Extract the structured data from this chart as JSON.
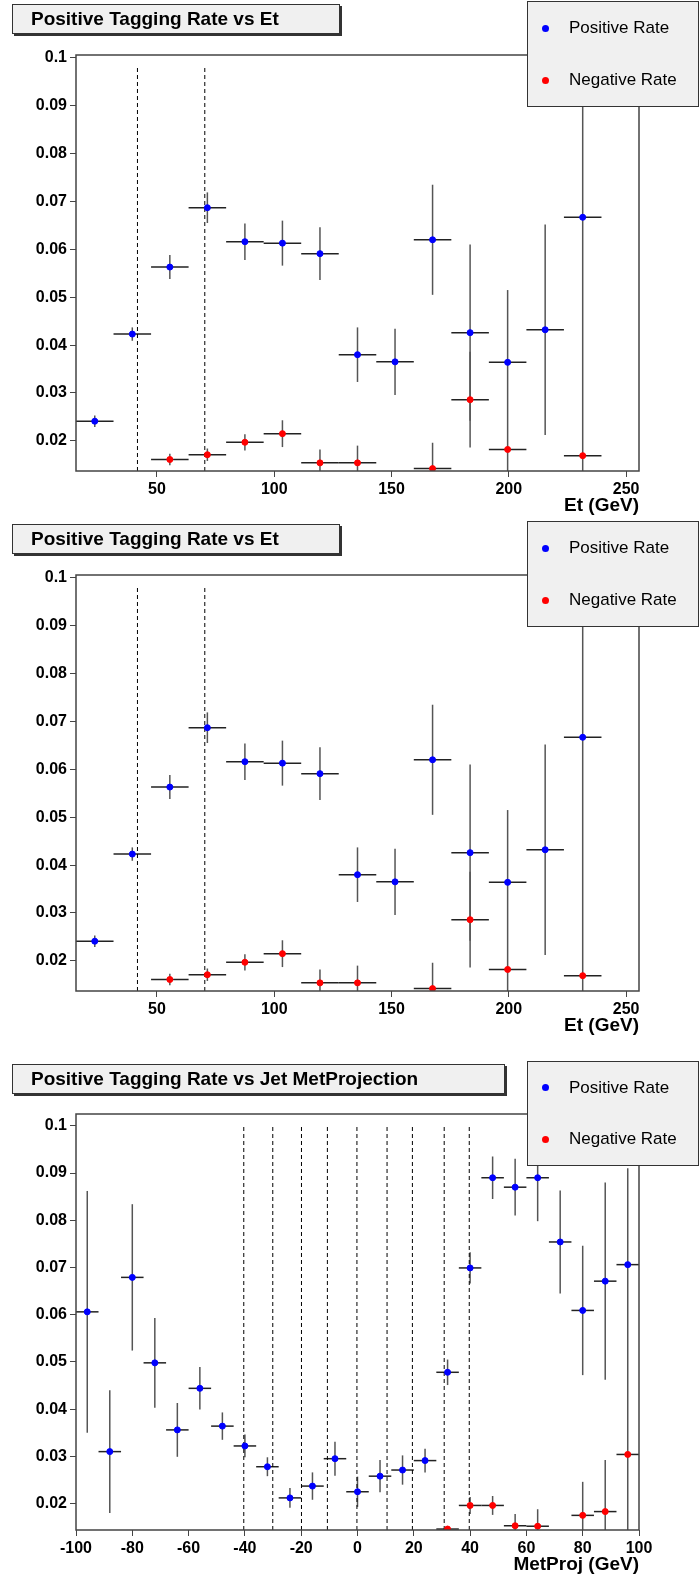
{
  "chart_data": [
    {
      "type": "scatter",
      "title": "Positive Tagging Rate vs Et",
      "xlabel": "Et (GeV)",
      "xlim": [
        15.5,
        255.5
      ],
      "xticks": [
        50,
        100,
        150,
        200,
        250
      ],
      "ylim": [
        0.0137,
        0.1006
      ],
      "yticks": [
        0.02,
        0.03,
        0.04,
        0.05,
        0.06,
        0.07,
        0.08,
        0.09,
        0.1
      ],
      "legend": "top right",
      "marker": "circle",
      "ref_lines": [
        {
          "axis": "x",
          "value": 41.7,
          "line_style": "dashed",
          "color": "#000000"
        },
        {
          "axis": "x",
          "value": 70.4,
          "line_style": "dashed",
          "color": "#000000"
        }
      ],
      "series": [
        {
          "name": "Positive Rate",
          "color": "#0000ff",
          "x": [
            23.5,
            39.5,
            55.5,
            71.5,
            87.5,
            103.5,
            119.5,
            135.5,
            151.5,
            167.5,
            183.5,
            199.5,
            215.5,
            231.5
          ],
          "values": [
            0.0241,
            0.0423,
            0.0563,
            0.0687,
            0.0616,
            0.0613,
            0.0591,
            0.038,
            0.0365,
            0.062,
            0.0426,
            0.0364,
            0.0432,
            0.0667
          ],
          "errors": [
            0.0012,
            0.0014,
            0.0025,
            0.0032,
            0.0038,
            0.0047,
            0.0055,
            0.0057,
            0.0069,
            0.0115,
            0.0184,
            [
              0.0137,
              0.0515
            ],
            0.022,
            [
              0.0137,
              0.09
            ]
          ],
          "xerrors": [
            8,
            8,
            8,
            8,
            8,
            8,
            8,
            8,
            8,
            8,
            8,
            8,
            8,
            8
          ]
        },
        {
          "name": "Negative Rate",
          "color": "#ff0000",
          "x": [
            55.5,
            71.5,
            87.5,
            103.5,
            119.5,
            135.5,
            167.5,
            183.5,
            199.5,
            231.5
          ],
          "values": [
            0.0161,
            0.0171,
            0.0197,
            0.0215,
            0.0154,
            0.0154,
            0.0142,
            0.0286,
            0.0182,
            0.0169
          ],
          "errors": [
            0.0012,
            0.0013,
            0.0017,
            0.0028,
            [
              0.0137,
              0.0182
            ],
            [
              0.0137,
              0.019
            ],
            [
              0.0137,
              0.0196
            ],
            0.01,
            null,
            null
          ],
          "xerrors": [
            8,
            8,
            8,
            8,
            8,
            8,
            8,
            8,
            8,
            8
          ]
        }
      ]
    },
    {
      "type": "scatter",
      "title": "Positive Tagging Rate vs Et",
      "xlabel": "Et (GeV)",
      "xlim": [
        15.5,
        255.5
      ],
      "xticks": [
        50,
        100,
        150,
        200,
        250
      ],
      "ylim": [
        0.0137,
        0.1006
      ],
      "yticks": [
        0.02,
        0.03,
        0.04,
        0.05,
        0.06,
        0.07,
        0.08,
        0.09,
        0.1
      ],
      "legend": "top right",
      "marker": "circle",
      "ref_lines": [
        {
          "axis": "x",
          "value": 41.7,
          "line_style": "dashed",
          "color": "#000000"
        },
        {
          "axis": "x",
          "value": 70.4,
          "line_style": "dashed",
          "color": "#000000"
        }
      ],
      "series": [
        {
          "name": "Positive Rate",
          "color": "#0000ff",
          "x": [
            23.5,
            39.5,
            55.5,
            71.5,
            87.5,
            103.5,
            119.5,
            135.5,
            151.5,
            167.5,
            183.5,
            199.5,
            215.5,
            231.5
          ],
          "values": [
            0.0241,
            0.0423,
            0.0563,
            0.0687,
            0.0616,
            0.0613,
            0.0591,
            0.038,
            0.0365,
            0.062,
            0.0426,
            0.0364,
            0.0432,
            0.0667
          ],
          "errors": [
            0.0012,
            0.0014,
            0.0025,
            0.0032,
            0.0038,
            0.0047,
            0.0055,
            0.0057,
            0.0069,
            0.0115,
            0.0184,
            [
              0.0137,
              0.0515
            ],
            0.022,
            [
              0.0137,
              0.09
            ]
          ],
          "xerrors": [
            8,
            8,
            8,
            8,
            8,
            8,
            8,
            8,
            8,
            8,
            8,
            8,
            8,
            8
          ]
        },
        {
          "name": "Negative Rate",
          "color": "#ff0000",
          "x": [
            55.5,
            71.5,
            87.5,
            103.5,
            119.5,
            135.5,
            167.5,
            183.5,
            199.5,
            231.5
          ],
          "values": [
            0.0161,
            0.0171,
            0.0197,
            0.0215,
            0.0154,
            0.0154,
            0.0142,
            0.0286,
            0.0182,
            0.0169
          ],
          "errors": [
            0.0012,
            0.0013,
            0.0017,
            0.0028,
            [
              0.0137,
              0.0182
            ],
            [
              0.0137,
              0.019
            ],
            [
              0.0137,
              0.0196
            ],
            0.01,
            null,
            null
          ],
          "xerrors": [
            8,
            8,
            8,
            8,
            8,
            8,
            8,
            8,
            8,
            8
          ]
        }
      ]
    },
    {
      "type": "scatter",
      "title": "Positive Tagging Rate vs Jet MetProjection",
      "xlabel": "MetProj (GeV)",
      "xlim": [
        -100,
        100
      ],
      "xticks": [
        -100,
        -80,
        -60,
        -40,
        -20,
        0,
        20,
        40,
        60,
        80,
        100
      ],
      "ylim": [
        0.0144,
        0.1025
      ],
      "yticks": [
        0.02,
        0.03,
        0.04,
        0.05,
        0.06,
        0.07,
        0.08,
        0.09,
        0.1
      ],
      "legend": "top right",
      "marker": "circle",
      "ref_lines": [
        {
          "axis": "x",
          "value": -40.4,
          "line_style": "dashed",
          "color": "#000000"
        },
        {
          "axis": "x",
          "value": -30.1,
          "line_style": "dashed",
          "color": "#000000"
        },
        {
          "axis": "x",
          "value": -19.9,
          "line_style": "dashed",
          "color": "#000000"
        },
        {
          "axis": "x",
          "value": -10.7,
          "line_style": "dashed",
          "color": "#000000"
        },
        {
          "axis": "x",
          "value": -0.2,
          "line_style": "dashed",
          "color": "#000000"
        },
        {
          "axis": "x",
          "value": 10.5,
          "line_style": "dashed",
          "color": "#000000"
        },
        {
          "axis": "x",
          "value": 19.5,
          "line_style": "dashed",
          "color": "#000000"
        },
        {
          "axis": "x",
          "value": 30.8,
          "line_style": "dashed",
          "color": "#000000"
        },
        {
          "axis": "x",
          "value": 39.7,
          "line_style": "dashed",
          "color": "#000000"
        }
      ],
      "series": [
        {
          "name": "Positive Rate",
          "color": "#0000ff",
          "x": [
            -96,
            -88,
            -80,
            -72,
            -64,
            -56,
            -48,
            -40,
            -32,
            -24,
            -16,
            -8,
            0,
            8,
            16,
            24,
            32,
            40,
            48,
            56,
            64,
            72,
            80,
            88,
            96
          ],
          "values": [
            0.0606,
            0.031,
            0.0679,
            0.0498,
            0.0356,
            0.0444,
            0.0364,
            0.0322,
            0.0278,
            0.0212,
            0.0237,
            0.0295,
            0.0225,
            0.0258,
            0.0271,
            0.0291,
            0.0478,
            0.0699,
            0.089,
            0.087,
            0.089,
            0.0754,
            0.0609,
            0.0671,
            0.0706
          ],
          "errors": [
            0.0256,
            0.013,
            0.0155,
            0.0095,
            0.0057,
            0.0045,
            0.0029,
            0.0024,
            0.002,
            0.0021,
            0.0029,
            0.0036,
            0.0032,
            0.0034,
            0.0031,
            0.0025,
            0.0027,
            0.0033,
            0.0045,
            0.006,
            0.0092,
            0.0109,
            0.0137,
            0.0209,
            [
              0.0144,
              0.091
            ]
          ],
          "xerrors": [
            4,
            4,
            4,
            4,
            4,
            4,
            4,
            4,
            4,
            4,
            4,
            4,
            4,
            4,
            4,
            4,
            4,
            4,
            4,
            4,
            4,
            4,
            4,
            4,
            4
          ]
        },
        {
          "name": "Negative Rate",
          "color": "#ff0000",
          "x": [
            32,
            40,
            48,
            56,
            64,
            80,
            88,
            96
          ],
          "values": [
            0.0146,
            0.0196,
            0.0196,
            0.0153,
            0.0152,
            0.0175,
            0.0183,
            0.0304
          ],
          "errors": [
            null,
            0.0018,
            0.002,
            [
              0.0144,
              0.0178
            ],
            [
              0.0144,
              0.0188
            ],
            [
              0.0144,
              0.0246
            ],
            [
              0.0144,
              0.0292
            ],
            null
          ],
          "xerrors": [
            4,
            4,
            4,
            4,
            4,
            4,
            4,
            4
          ]
        }
      ]
    }
  ]
}
